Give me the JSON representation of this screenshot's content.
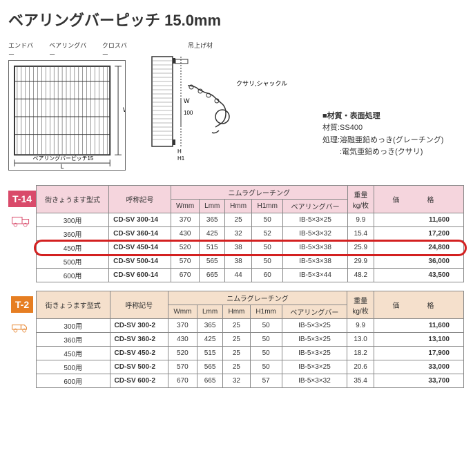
{
  "title": "ベアリングバーピッチ 15.0mm",
  "diagram_labels": {
    "endbar": "エンドバー",
    "bearing": "ベアリングバー",
    "cross": "クロスバー",
    "lift": "吊上げ材",
    "chain": "クサリ,シャックル",
    "pitch": "ベアリングバーピッチ15"
  },
  "material": {
    "header": "■材質・表面処理",
    "line1": "材質:SS400",
    "line2": "処理:溶融亜鉛めっき(グレーチング)",
    "line3": "　　 :電気亜鉛めっき(クサリ)"
  },
  "table_headers": {
    "model": "街きょうます型式",
    "code": "呼称記号",
    "group": "ニムラグレーチング",
    "w": "Wmm",
    "l": "Lmm",
    "h": "Hmm",
    "h1": "H1mm",
    "bearing": "ベアリングバー",
    "weight": "重量\nkg/枚",
    "price": "価　　　　格"
  },
  "tabs": {
    "t14": "T-14",
    "t2": "T-2"
  },
  "t14_rows": [
    {
      "model": "300用",
      "code": "CD-SV 300-14",
      "w": "370",
      "l": "365",
      "h": "25",
      "h1": "50",
      "bearing": "IB-5×3×25",
      "wt": "9.9",
      "price": "11,600"
    },
    {
      "model": "360用",
      "code": "CD-SV 360-14",
      "w": "430",
      "l": "425",
      "h": "32",
      "h1": "52",
      "bearing": "IB-5×3×32",
      "wt": "15.4",
      "price": "17,200"
    },
    {
      "model": "450用",
      "code": "CD-SV 450-14",
      "w": "520",
      "l": "515",
      "h": "38",
      "h1": "50",
      "bearing": "IB-5×3×38",
      "wt": "25.9",
      "price": "24,800",
      "highlight": true
    },
    {
      "model": "500用",
      "code": "CD-SV 500-14",
      "w": "570",
      "l": "565",
      "h": "38",
      "h1": "50",
      "bearing": "IB-5×3×38",
      "wt": "29.9",
      "price": "36,000"
    },
    {
      "model": "600用",
      "code": "CD-SV 600-14",
      "w": "670",
      "l": "665",
      "h": "44",
      "h1": "60",
      "bearing": "IB-5×3×44",
      "wt": "48.2",
      "price": "43,500"
    }
  ],
  "t2_rows": [
    {
      "model": "300用",
      "code": "CD-SV 300-2",
      "w": "370",
      "l": "365",
      "h": "25",
      "h1": "50",
      "bearing": "IB-5×3×25",
      "wt": "9.9",
      "price": "11,600"
    },
    {
      "model": "360用",
      "code": "CD-SV 360-2",
      "w": "430",
      "l": "425",
      "h": "25",
      "h1": "50",
      "bearing": "IB-5×3×25",
      "wt": "13.0",
      "price": "13,100"
    },
    {
      "model": "450用",
      "code": "CD-SV 450-2",
      "w": "520",
      "l": "515",
      "h": "25",
      "h1": "50",
      "bearing": "IB-5×3×25",
      "wt": "18.2",
      "price": "17,900"
    },
    {
      "model": "500用",
      "code": "CD-SV 500-2",
      "w": "570",
      "l": "565",
      "h": "25",
      "h1": "50",
      "bearing": "IB-5×3×25",
      "wt": "20.6",
      "price": "33,000"
    },
    {
      "model": "600用",
      "code": "CD-SV 600-2",
      "w": "670",
      "l": "665",
      "h": "32",
      "h1": "57",
      "bearing": "IB-5×3×32",
      "wt": "35.4",
      "price": "33,700"
    }
  ],
  "colors": {
    "t14": "#d94a6a",
    "t2": "#e67e22",
    "highlight": "#d32020"
  }
}
